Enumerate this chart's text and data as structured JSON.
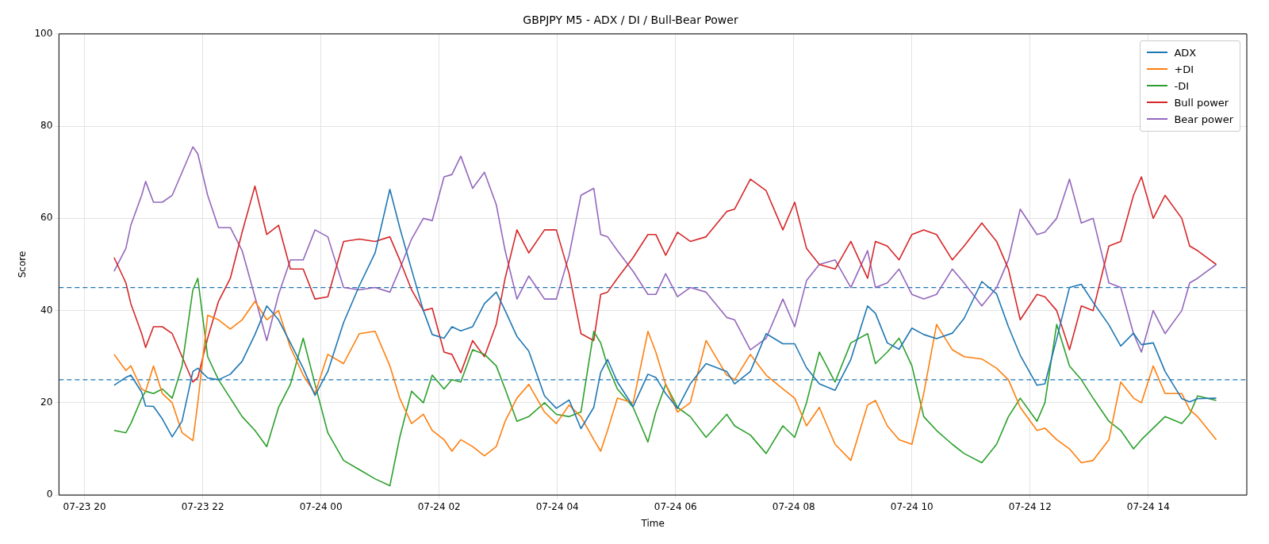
{
  "chart_data": {
    "type": "line",
    "title": "GBPJPY M5 - ADX / DI / Bull-Bear Power",
    "xlabel": "Time",
    "ylabel": "Score",
    "x": [
      "--07-23T20:30",
      "--07-23T20:42",
      "--07-23T20:47",
      "--07-23T20:58",
      "--07-23T21:02",
      "--07-23T21:10",
      "--07-23T21:19",
      "--07-23T21:29",
      "--07-23T21:39",
      "--07-23T21:50",
      "--07-23T21:55",
      "--07-23T22:05",
      "--07-23T22:16",
      "--07-23T22:28",
      "--07-23T22:40",
      "--07-23T22:53",
      "--07-23T23:05",
      "--07-23T23:17",
      "--07-23T23:29",
      "--07-23T23:42",
      "--07-23T23:54",
      "--07-24T00:07",
      "--07-24T00:23",
      "--07-24T00:39",
      "--07-24T00:55",
      "--07-24T01:10",
      "--07-24T01:20",
      "--07-24T01:32",
      "--07-24T01:44",
      "--07-24T01:53",
      "--07-24T02:05",
      "--07-24T02:13",
      "--07-24T02:22",
      "--07-24T02:34",
      "--07-24T02:46",
      "--07-24T02:58",
      "--07-24T03:07",
      "--07-24T03:19",
      "--07-24T03:31",
      "--07-24T03:47",
      "--07-24T03:59",
      "--07-24T04:12",
      "--07-24T04:24",
      "--07-24T04:37",
      "--07-24T04:44",
      "--07-24T04:51",
      "--07-24T05:01",
      "--07-24T05:17",
      "--07-24T05:32",
      "--07-24T05:40",
      "--07-24T05:50",
      "--07-24T06:02",
      "--07-24T06:15",
      "--07-24T06:31",
      "--07-24T06:52",
      "--07-24T07:00",
      "--07-24T07:16",
      "--07-24T07:32",
      "--07-24T07:49",
      "--07-24T08:01",
      "--07-24T08:13",
      "--07-24T08:26",
      "--07-24T08:42",
      "--07-24T08:58",
      "--07-24T09:15",
      "--07-24T09:23",
      "--07-24T09:35",
      "--07-24T09:47",
      "--07-24T10:00",
      "--07-24T10:12",
      "--07-24T10:25",
      "--07-24T10:41",
      "--07-24T10:53",
      "--07-24T11:11",
      "--07-24T11:26",
      "--07-24T11:38",
      "--07-24T11:50",
      "--07-24T12:07",
      "--07-24T12:15",
      "--07-24T12:27",
      "--07-24T12:40",
      "--07-24T12:52",
      "--07-24T13:04",
      "--07-24T13:20",
      "--07-24T13:32",
      "--07-24T13:45",
      "--07-24T13:53",
      "--07-24T14:05",
      "--07-24T14:17",
      "--07-24T14:34",
      "--07-24T14:42",
      "--07-24T14:50",
      "--07-24T15:09"
    ],
    "series": [
      {
        "name": "ADX",
        "color": "#1f77b4",
        "values": [
          23.8,
          25.5,
          26,
          22.3,
          19.3,
          19.2,
          16.5,
          12.6,
          16,
          26.8,
          27.5,
          25.4,
          25,
          26.2,
          29,
          34.8,
          41,
          38,
          33,
          27.5,
          21.6,
          26.8,
          37.4,
          45.4,
          52.5,
          66.3,
          58,
          48.9,
          40,
          34.8,
          34,
          36.5,
          35.6,
          36.5,
          41.5,
          44,
          40,
          34.4,
          31.2,
          21.5,
          18.8,
          20.6,
          14.4,
          19,
          26.6,
          29.4,
          24.5,
          19.2,
          26.2,
          25.5,
          22,
          18.8,
          24.1,
          28.5,
          26.8,
          24.1,
          26.8,
          35,
          32.8,
          32.8,
          27.6,
          24.1,
          22.7,
          29.4,
          41,
          39.4,
          33,
          31.6,
          36.2,
          34.8,
          33.9,
          35.1,
          38.3,
          46.3,
          43.6,
          36.5,
          30.3,
          23.8,
          24.1,
          33.9,
          45,
          45.7,
          41.8,
          36.9,
          32.3,
          35.1,
          32.6,
          33,
          26.8,
          20.9,
          20.2,
          20.9,
          21
        ]
      },
      {
        "name": "+DI",
        "color": "#ff7f0e",
        "values": [
          30.5,
          27,
          28,
          23,
          22.5,
          28,
          22,
          20,
          13.5,
          11.8,
          20,
          39,
          38,
          36,
          38,
          42,
          38,
          40,
          32,
          26,
          22,
          30.5,
          28.5,
          35,
          35.5,
          28,
          21,
          15.5,
          17.5,
          14,
          12,
          9.5,
          12,
          10.5,
          8.5,
          10.5,
          16,
          21,
          24,
          18,
          15.5,
          19.5,
          17,
          12,
          9.5,
          14,
          21,
          20,
          35.5,
          31,
          24,
          18,
          20,
          33.5,
          26,
          25,
          30.5,
          26,
          23,
          21,
          15,
          19,
          11,
          7.5,
          19.5,
          20.5,
          15,
          12,
          11,
          22,
          37,
          31.5,
          30,
          29.5,
          27.5,
          25,
          19,
          14,
          14.5,
          12,
          10,
          7,
          7.5,
          12,
          24.5,
          21,
          20,
          28,
          22,
          22,
          18.5,
          17,
          12
        ]
      },
      {
        "name": "-DI",
        "color": "#2ca02c",
        "values": [
          14,
          13.5,
          15.5,
          21,
          22.5,
          22,
          23,
          21,
          28,
          44.5,
          47,
          30,
          25,
          21,
          17,
          14,
          10.5,
          19,
          24,
          34,
          24,
          13.5,
          7.5,
          5.5,
          3.5,
          2,
          12.5,
          22.5,
          20,
          26,
          23,
          25,
          24.5,
          31.5,
          30.5,
          28,
          23,
          16,
          17,
          20,
          17.5,
          17,
          18,
          35.5,
          33,
          28,
          23,
          19,
          11.5,
          18,
          24,
          19,
          17,
          12.5,
          17.5,
          15,
          13,
          9,
          15,
          12.5,
          20,
          31,
          24.5,
          33,
          35,
          28.5,
          31,
          34,
          28,
          17,
          14,
          11,
          9,
          7,
          11,
          17,
          21,
          16,
          20,
          37,
          28,
          25,
          21,
          16,
          14,
          10,
          12,
          14.5,
          17,
          15.5,
          17.5,
          21.5,
          20.5
        ]
      },
      {
        "name": "Bull power",
        "color": "#d62728",
        "values": [
          51.5,
          46,
          41.5,
          35,
          32,
          36.5,
          36.5,
          35,
          30,
          24.5,
          25.5,
          34,
          42,
          47,
          57,
          67,
          56.5,
          58.5,
          49,
          49,
          42.5,
          43,
          55,
          55.5,
          55,
          56,
          51,
          44.5,
          40,
          40.5,
          31,
          30.5,
          26.5,
          33.5,
          30,
          37,
          47,
          57.5,
          52.5,
          57.5,
          57.5,
          48,
          35,
          33.5,
          43.5,
          44,
          47,
          51.5,
          56.5,
          56.5,
          52,
          57,
          55,
          56,
          61.5,
          62,
          68.5,
          66,
          57.5,
          63.5,
          53.5,
          50,
          49,
          55,
          47,
          55,
          54,
          51,
          56.5,
          57.5,
          56.5,
          51,
          54,
          59,
          55,
          49,
          38,
          43.5,
          43,
          40,
          31.5,
          41,
          40,
          54,
          55,
          65,
          69,
          60,
          65,
          60,
          54,
          53,
          50
        ]
      },
      {
        "name": "Bear power",
        "color": "#9467bd",
        "values": [
          48.5,
          53.5,
          58.5,
          65,
          68,
          63.5,
          63.5,
          65,
          70,
          75.5,
          74,
          65,
          58,
          58,
          53,
          43,
          33.5,
          43.5,
          51,
          51,
          57.5,
          56,
          45,
          44.5,
          45,
          44,
          49,
          55.5,
          60,
          59.5,
          69,
          69.5,
          73.5,
          66.5,
          70,
          63,
          53,
          42.5,
          47.5,
          42.5,
          42.5,
          52,
          65,
          66.5,
          56.5,
          56,
          53,
          48.5,
          43.5,
          43.5,
          48,
          43,
          45,
          44,
          38.5,
          38,
          31.5,
          34,
          42.5,
          36.5,
          46.5,
          50,
          51,
          45,
          53,
          45,
          46,
          49,
          43.5,
          42.5,
          43.5,
          49,
          46,
          41,
          45,
          51,
          62,
          56.5,
          57,
          60,
          68.5,
          59,
          60,
          46,
          45,
          35,
          31,
          40,
          35,
          40,
          46,
          47,
          50
        ]
      }
    ],
    "xlim": [
      "--07-23T19:34",
      "--07-24T15:40"
    ],
    "xticks": [
      {
        "value": "--07-23T20:00",
        "label": "07-23 20"
      },
      {
        "value": "--07-23T22:00",
        "label": "07-23 22"
      },
      {
        "value": "--07-24T00:00",
        "label": "07-24 00"
      },
      {
        "value": "--07-24T02:00",
        "label": "07-24 02"
      },
      {
        "value": "--07-24T04:00",
        "label": "07-24 04"
      },
      {
        "value": "--07-24T06:00",
        "label": "07-24 06"
      },
      {
        "value": "--07-24T08:00",
        "label": "07-24 08"
      },
      {
        "value": "--07-24T10:00",
        "label": "07-24 10"
      },
      {
        "value": "--07-24T12:00",
        "label": "07-24 12"
      },
      {
        "value": "--07-24T14:00",
        "label": "07-24 14"
      }
    ],
    "ylim": [
      0,
      100
    ],
    "yticks": [
      0,
      20,
      40,
      60,
      80,
      100
    ],
    "ref_lines": [
      {
        "axis": "y",
        "value": 45,
        "color": "#1f77b4",
        "line_style": "dashed"
      },
      {
        "axis": "y",
        "value": 25,
        "color": "#1f77b4",
        "line_style": "dashed"
      }
    ],
    "grid": true,
    "legend": "top right",
    "line_style": "solid"
  }
}
